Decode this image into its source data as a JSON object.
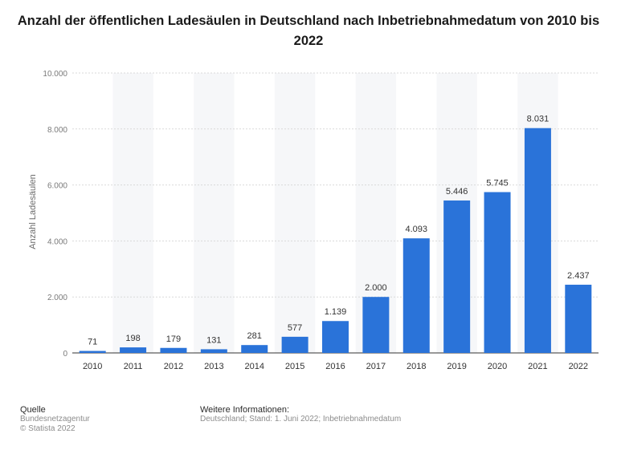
{
  "chart_data": {
    "type": "bar",
    "title": "Anzahl der öffentlichen Ladesäulen in Deutschland nach Inbetriebnahmedatum von 2010 bis 2022",
    "xlabel": "",
    "ylabel": "Anzahl Ladesäulen",
    "ylim": [
      0,
      10000
    ],
    "yticks": [
      "0",
      "2.000",
      "4.000",
      "6.000",
      "8.000",
      "10.000"
    ],
    "yticks_values": [
      0,
      2000,
      4000,
      6000,
      8000,
      10000
    ],
    "categories": [
      "2010",
      "2011",
      "2012",
      "2013",
      "2014",
      "2015",
      "2016",
      "2017",
      "2018",
      "2019",
      "2020",
      "2021",
      "2022"
    ],
    "values": [
      71,
      198,
      179,
      131,
      281,
      577,
      1139,
      2000,
      4093,
      5446,
      5745,
      8031,
      2437
    ],
    "value_labels": [
      "71",
      "198",
      "179",
      "131",
      "281",
      "577",
      "1.139",
      "2.000",
      "4.093",
      "5.446",
      "5.745",
      "8.031",
      "2.437"
    ],
    "bar_color": "#2a73d9",
    "grid": true
  },
  "footer": {
    "source_heading": "Quelle",
    "source_lines": [
      "Bundesnetzagentur",
      "© Statista 2022"
    ],
    "info_heading": "Weitere Informationen:",
    "info_text": "Deutschland; Stand: 1. Juni 2022; Inbetriebnahmedatum"
  }
}
